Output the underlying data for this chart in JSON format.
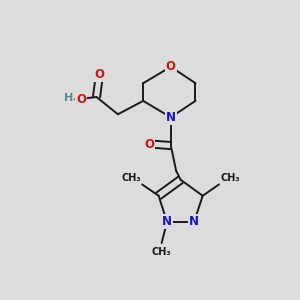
{
  "bg_color": "#dcdcdc",
  "bond_color": "#1a1a1a",
  "n_color": "#1414cc",
  "o_color": "#cc1414",
  "h_color": "#5f8787",
  "bond_width": 1.4,
  "font_size_atom": 8.5,
  "font_size_methyl": 7.0,
  "xlim": [
    0,
    1
  ],
  "ylim": [
    0,
    1
  ]
}
